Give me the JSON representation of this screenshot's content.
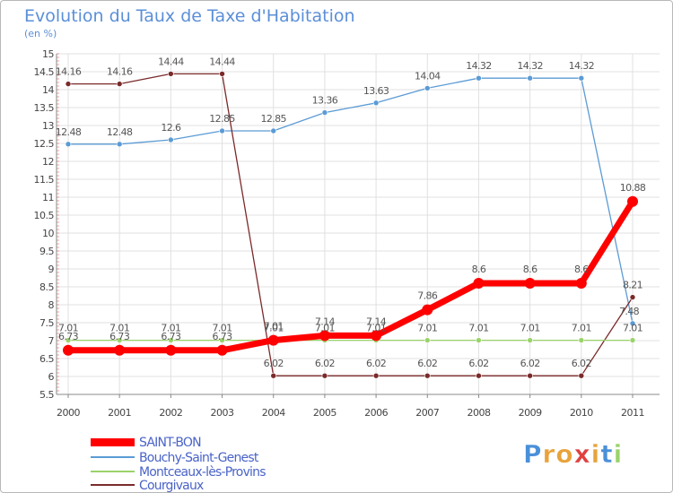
{
  "chart_data": {
    "type": "line",
    "title": "Evolution du Taux de Taxe d'Habitation",
    "subtitle": "(en %)",
    "xlabel": "",
    "ylabel": "",
    "x": [
      "2000",
      "2001",
      "2002",
      "2003",
      "2004",
      "2005",
      "2006",
      "2007",
      "2008",
      "2009",
      "2010",
      "2011"
    ],
    "ylim": [
      5.5,
      15
    ],
    "yticks": [
      "5.5",
      "6",
      "6.5",
      "7",
      "7.5",
      "8",
      "8.5",
      "9",
      "9.5",
      "10",
      "10.5",
      "11",
      "11.5",
      "12",
      "12.5",
      "13",
      "13.5",
      "14",
      "14.5",
      "15"
    ],
    "grid": true,
    "legend": "bottom-left",
    "series": [
      {
        "name": "SAINT-BON",
        "color": "#ff0000",
        "values": [
          6.73,
          6.73,
          6.73,
          6.73,
          7.01,
          7.14,
          7.14,
          7.86,
          8.6,
          8.6,
          8.6,
          10.88
        ],
        "labels": [
          "6.73",
          "6.73",
          "6.73",
          "6.73",
          "7.01",
          "7.14",
          "7.14",
          "7.86",
          "8.6",
          "8.6",
          "8.6",
          "10.88"
        ]
      },
      {
        "name": "Bouchy-Saint-Genest",
        "color": "#5b9bd5",
        "values": [
          12.48,
          12.48,
          12.6,
          12.85,
          12.85,
          13.36,
          13.63,
          14.04,
          14.32,
          14.32,
          14.32,
          7.48
        ],
        "labels": [
          "12.48",
          "12.48",
          "12.6",
          "12.85",
          "12.85",
          "13.36",
          "13.63",
          "14.04",
          "14.32",
          "14.32",
          "14.32",
          "7.48"
        ]
      },
      {
        "name": "Montceaux-lès-Provins",
        "color": "#9ad36a",
        "values": [
          7.01,
          7.01,
          7.01,
          7.01,
          7.01,
          7.01,
          7.01,
          7.01,
          7.01,
          7.01,
          7.01,
          7.01
        ],
        "labels": [
          "7.01",
          "7.01",
          "7.01",
          "7.01",
          "7.01",
          "7.01",
          "7.01",
          "7.01",
          "7.01",
          "7.01",
          "7.01",
          "7.01"
        ]
      },
      {
        "name": "Courgivaux",
        "color": "#7b2a2a",
        "values": [
          14.16,
          14.16,
          14.44,
          14.44,
          6.02,
          6.02,
          6.02,
          6.02,
          6.02,
          6.02,
          6.02,
          8.21
        ],
        "labels": [
          "14.16",
          "14.16",
          "14.44",
          "14.44",
          "6.02",
          "6.02",
          "6.02",
          "6.02",
          "6.02",
          "6.02",
          "6.02",
          "8.21"
        ]
      }
    ]
  },
  "branding": {
    "logo_text": "Proxiti"
  }
}
